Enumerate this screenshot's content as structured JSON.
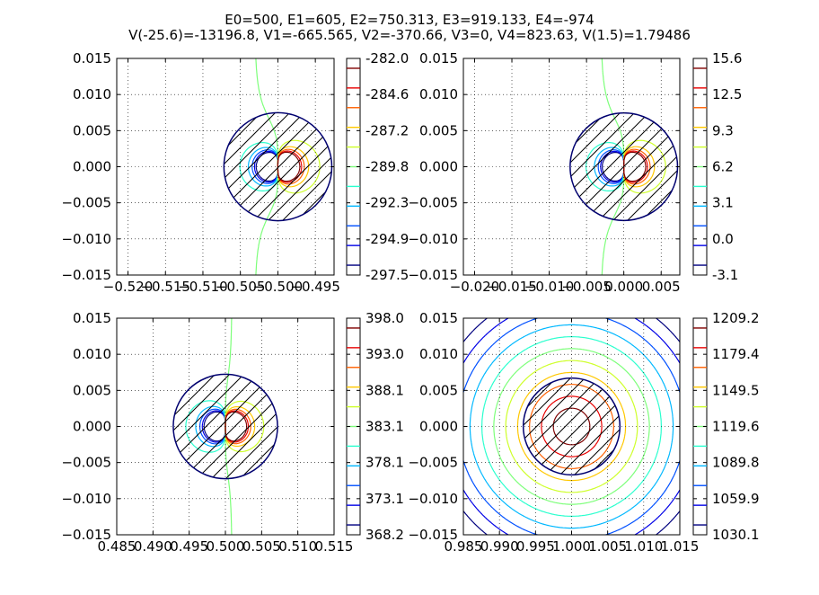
{
  "title": {
    "line1": "E0=500, E1=605, E2=750.313, E3=919.133, E4=-974",
    "line2": "V(-25.6)=-13196.8, V1=-665.565, V2=-370.66, V3=0, V4=823.63, V(1.5)=1.79486"
  },
  "colors": {
    "levels": [
      "#00007f",
      "#0000e6",
      "#0050ff",
      "#00b8ff",
      "#29ffce",
      "#7dff7a",
      "#ceff29",
      "#ffc800",
      "#ff6000",
      "#e80000",
      "#7f0000"
    ],
    "hatch_outline": "#000070",
    "grid": "#000000",
    "axes": "#000000"
  },
  "chart_data": [
    {
      "type": "contour",
      "panel": "top-left",
      "xlim": [
        -0.5215,
        -0.4925
      ],
      "ylim": [
        -0.015,
        0.015
      ],
      "x_ticks": [
        "-0.520",
        "-0.515",
        "-0.510",
        "-0.505",
        "-0.500",
        "-0.495"
      ],
      "x_tick_values": [
        -0.52,
        -0.515,
        -0.51,
        -0.505,
        -0.5,
        -0.495
      ],
      "y_ticks": [
        "0.015",
        "0.010",
        "0.005",
        "0.000",
        "-0.005",
        "-0.010",
        "-0.015"
      ],
      "y_tick_values": [
        0.015,
        0.01,
        0.005,
        0.0,
        -0.005,
        -0.01,
        -0.015
      ],
      "grid": true,
      "hatched_disk": {
        "center": [
          -0.5,
          0.0
        ],
        "radius": 0.0072
      },
      "colorbar": {
        "min": -297.5,
        "max": -282.0,
        "ticks": [
          "-282.0",
          "-284.6",
          "-287.2",
          "-289.8",
          "-292.3",
          "-294.9",
          "-297.5"
        ]
      }
    },
    {
      "type": "contour",
      "panel": "top-right",
      "xlim": [
        -0.0215,
        0.0075
      ],
      "ylim": [
        -0.015,
        0.015
      ],
      "x_ticks": [
        "-0.020",
        "-0.015",
        "-0.010",
        "-0.005",
        "0.000",
        "0.005"
      ],
      "x_tick_values": [
        -0.02,
        -0.015,
        -0.01,
        -0.005,
        0.0,
        0.005
      ],
      "y_ticks": [
        "0.015",
        "0.010",
        "0.005",
        "0.000",
        "-0.005",
        "-0.010",
        "-0.015"
      ],
      "y_tick_values": [
        0.015,
        0.01,
        0.005,
        0.0,
        -0.005,
        -0.01,
        -0.015
      ],
      "grid": true,
      "hatched_disk": {
        "center": [
          0.0,
          0.0
        ],
        "radius": 0.0072
      },
      "colorbar": {
        "min": -3.1,
        "max": 15.6,
        "ticks": [
          "15.6",
          "12.5",
          "9.3",
          "6.2",
          "3.1",
          "0.0",
          "-3.1"
        ]
      }
    },
    {
      "type": "contour",
      "panel": "bottom-left",
      "xlim": [
        0.485,
        0.515
      ],
      "ylim": [
        -0.015,
        0.015
      ],
      "x_ticks": [
        "0.485",
        "0.490",
        "0.495",
        "0.500",
        "0.505",
        "0.510",
        "0.515"
      ],
      "x_tick_values": [
        0.485,
        0.49,
        0.495,
        0.5,
        0.505,
        0.51,
        0.515
      ],
      "y_ticks": [
        "0.015",
        "0.010",
        "0.005",
        "0.000",
        "-0.005",
        "-0.010",
        "-0.015"
      ],
      "y_tick_values": [
        0.015,
        0.01,
        0.005,
        0.0,
        -0.005,
        -0.01,
        -0.015
      ],
      "grid": true,
      "hatched_disk": {
        "center": [
          0.5,
          0.0
        ],
        "radius": 0.0072
      },
      "colorbar": {
        "min": 368.2,
        "max": 398.0,
        "ticks": [
          "398.0",
          "393.0",
          "388.1",
          "383.1",
          "378.1",
          "373.1",
          "368.2"
        ]
      }
    },
    {
      "type": "contour",
      "panel": "bottom-right",
      "xlim": [
        0.985,
        1.015
      ],
      "ylim": [
        -0.015,
        0.015
      ],
      "x_ticks": [
        "0.985",
        "0.990",
        "0.995",
        "1.000",
        "1.005",
        "1.010",
        "1.015"
      ],
      "x_tick_values": [
        0.985,
        0.99,
        0.995,
        1.0,
        1.005,
        1.01,
        1.015
      ],
      "y_ticks": [
        "0.015",
        "0.010",
        "0.005",
        "0.000",
        "-0.005",
        "-0.010",
        "-0.015"
      ],
      "y_tick_values": [
        0.015,
        0.01,
        0.005,
        0.0,
        -0.005,
        -0.01,
        -0.015
      ],
      "grid": true,
      "hatched_disk": {
        "center": [
          1.0,
          0.0
        ],
        "radius": 0.0067
      },
      "colorbar": {
        "min": 1030.1,
        "max": 1209.2,
        "ticks": [
          "1209.2",
          "1179.4",
          "1149.5",
          "1119.6",
          "1089.8",
          "1059.9",
          "1030.1"
        ]
      }
    }
  ]
}
